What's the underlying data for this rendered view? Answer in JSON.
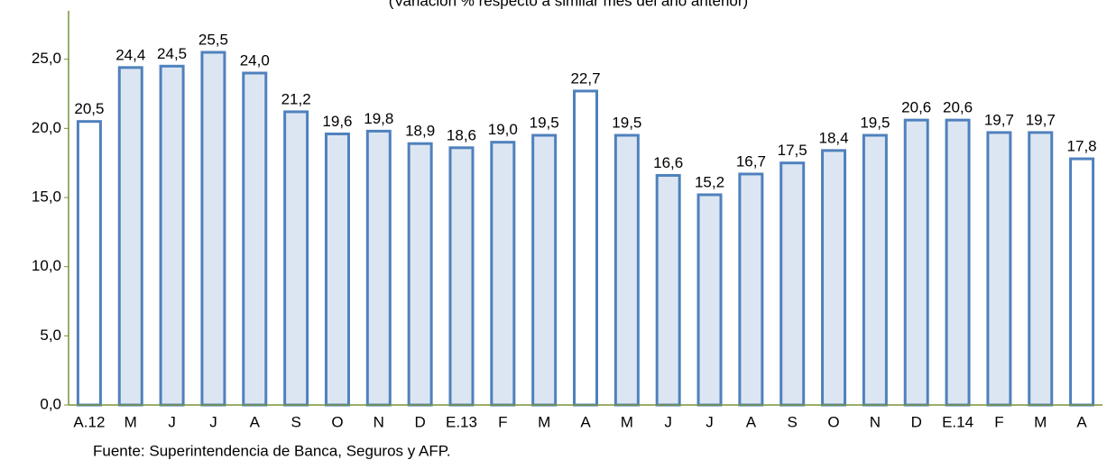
{
  "chart_data": {
    "type": "bar",
    "subtitle": "(Variación % respecto a similar mes del año anterior)",
    "source": "Fuente: Superintendencia de Banca, Seguros y AFP.",
    "categories": [
      "A.12",
      "M",
      "J",
      "J",
      "A",
      "S",
      "O",
      "N",
      "D",
      "E.13",
      "F",
      "M",
      "A",
      "M",
      "J",
      "J",
      "A",
      "S",
      "O",
      "N",
      "D",
      "E.14",
      "F",
      "M",
      "A"
    ],
    "values": [
      20.5,
      24.4,
      24.5,
      25.5,
      24.0,
      21.2,
      19.6,
      19.8,
      18.9,
      18.6,
      19.0,
      19.5,
      22.7,
      19.5,
      16.6,
      15.2,
      16.7,
      17.5,
      18.4,
      19.5,
      20.6,
      20.6,
      19.7,
      19.7,
      17.8
    ],
    "value_labels": [
      "20,5",
      "24,4",
      "24,5",
      "25,5",
      "24,0",
      "21,2",
      "19,6",
      "19,8",
      "18,9",
      "18,6",
      "19,0",
      "19,5",
      "22,7",
      "19,5",
      "16,6",
      "15,2",
      "16,7",
      "17,5",
      "18,4",
      "19,5",
      "20,6",
      "20,6",
      "19,7",
      "19,7",
      "17,8"
    ],
    "colors": [
      "#ffffff",
      "#dce6f2",
      "#dce6f2",
      "#dce6f2",
      "#dce6f2",
      "#dce6f2",
      "#dce6f2",
      "#dce6f2",
      "#dce6f2",
      "#dce6f2",
      "#dce6f2",
      "#dce6f2",
      "#ffffff",
      "#dce6f2",
      "#dce6f2",
      "#dce6f2",
      "#dce6f2",
      "#dce6f2",
      "#dce6f2",
      "#dce6f2",
      "#dce6f2",
      "#dce6f2",
      "#dce6f2",
      "#dce6f2",
      "#ffffff"
    ],
    "edge_color": "#4f81bd",
    "axis_color": "#77933c",
    "ylim": [
      0,
      28.5
    ],
    "yticks": [
      {
        "value": 0,
        "label": "0,0"
      },
      {
        "value": 5,
        "label": "5,0"
      },
      {
        "value": 10,
        "label": "10,0"
      },
      {
        "value": 15,
        "label": "15,0"
      },
      {
        "value": 20,
        "label": "20,0"
      },
      {
        "value": 25,
        "label": "25,0"
      }
    ],
    "grid": false
  }
}
